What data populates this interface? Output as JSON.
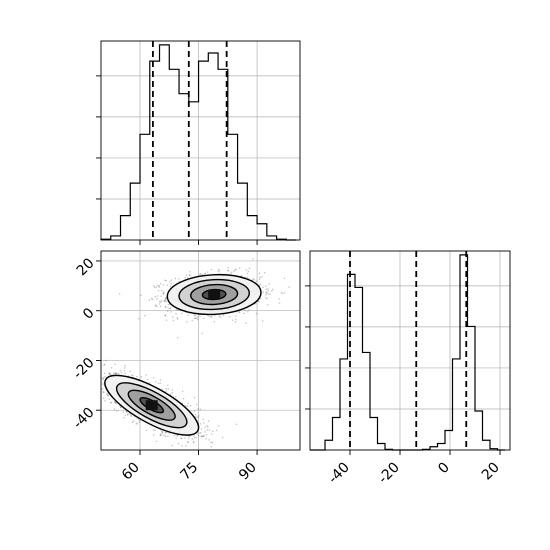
{
  "chart_data": {
    "type": "corner",
    "title": "",
    "parameters": [
      {
        "name": "",
        "axis_range": [
          50,
          101
        ]
      },
      {
        "name": "",
        "axis_range": [
          -56,
          24
        ]
      }
    ],
    "grid": true,
    "panels": [
      {
        "type": "histogram",
        "parameter_index": 0,
        "x_ticks": [
          60,
          75,
          90
        ],
        "x_tick_labels": [
          "60",
          "75",
          "90"
        ],
        "bin_edges": [
          50,
          52.5,
          55,
          57.5,
          60,
          62.5,
          65,
          67.5,
          70,
          72.5,
          75,
          77.5,
          80,
          82.5,
          85,
          87.5,
          90,
          92.5,
          95,
          97.5,
          100
        ],
        "counts": [
          0.1,
          0.5,
          3,
          7,
          13,
          22,
          24,
          21,
          18,
          17,
          22,
          23,
          21,
          13,
          7,
          3,
          2,
          0.5,
          0.1,
          0
        ],
        "quantile_lines": [
          63.3,
          72.5,
          82.2
        ]
      },
      {
        "type": "histogram",
        "parameter_index": 1,
        "x_ticks": [
          -40,
          -20,
          0,
          20
        ],
        "x_tick_labels": [
          "-40",
          "-20",
          "0",
          "20"
        ],
        "bin_edges": [
          -56,
          -53,
          -50,
          -47,
          -44,
          -41,
          -38,
          -35,
          -32,
          -29,
          -26,
          -23,
          -20,
          -17,
          -14,
          -11,
          -8,
          -5,
          -2,
          1,
          4,
          7,
          10,
          13,
          16,
          19,
          22
        ],
        "counts": [
          0,
          0,
          1.5,
          5,
          14,
          27,
          25,
          15,
          5,
          1,
          0.1,
          0,
          0,
          0,
          0,
          0.1,
          0.5,
          1,
          3,
          14,
          30,
          19,
          6,
          1.5,
          0.2,
          0
        ],
        "quantile_lines": [
          -40,
          -13.5,
          6.5
        ]
      },
      {
        "type": "2d-density",
        "x_parameter": 0,
        "y_parameter": 1,
        "x_ticks": [
          60,
          75,
          90
        ],
        "x_tick_labels": [
          "60",
          "75",
          "90"
        ],
        "y_ticks": [
          -40,
          -20,
          0,
          20
        ],
        "y_tick_labels": [
          "-40",
          "-20",
          "0",
          "20"
        ],
        "clusters": [
          {
            "center": [
              79,
              6.5
            ],
            "spread": [
              6,
              4
            ],
            "correlation": 0.1,
            "weight": 1
          },
          {
            "center": [
              63,
              -38
            ],
            "spread": [
              6,
              6
            ],
            "correlation": -0.75,
            "weight": 1
          }
        ]
      }
    ]
  }
}
